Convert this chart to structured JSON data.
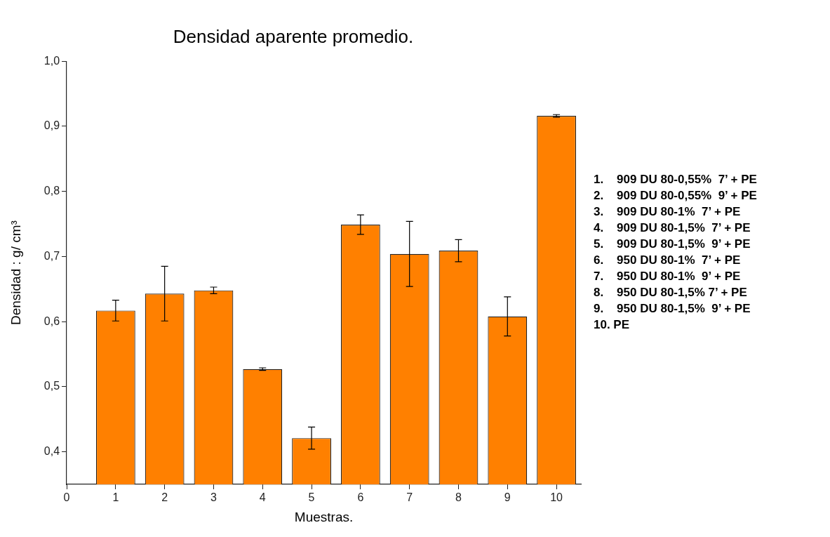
{
  "chart_data": {
    "type": "bar",
    "title": "Densidad aparente promedio.",
    "xlabel": "Muestras.",
    "ylabel": "Densidad : g/ cm³",
    "x": [
      1,
      2,
      3,
      4,
      5,
      6,
      7,
      8,
      9,
      10
    ],
    "values": [
      0.617,
      0.643,
      0.648,
      0.527,
      0.421,
      0.749,
      0.704,
      0.709,
      0.608,
      0.916
    ],
    "errors": [
      0.016,
      0.042,
      0.005,
      0.002,
      0.017,
      0.015,
      0.05,
      0.017,
      0.03,
      0.002
    ],
    "color": "#ff8000",
    "xlim": [
      0,
      10.5
    ],
    "xticks": [
      0,
      1,
      2,
      3,
      4,
      5,
      6,
      7,
      8,
      9,
      10
    ],
    "ylim": [
      0.35,
      1.0
    ],
    "yticks": [
      {
        "value": 0.4,
        "label": "0,4"
      },
      {
        "value": 0.5,
        "label": "0,5"
      },
      {
        "value": 0.6,
        "label": "0,6"
      },
      {
        "value": 0.7,
        "label": "0,7"
      },
      {
        "value": 0.8,
        "label": "0,8"
      },
      {
        "value": 0.9,
        "label": "0,9"
      },
      {
        "value": 1.0,
        "label": "1,0"
      }
    ],
    "grid": false,
    "legend": false,
    "annotations": [
      "1.    909 DU 80-0,55%  7’ + PE",
      "2.    909 DU 80-0,55%  9’ + PE",
      "3.    909 DU 80-1%  7’ + PE",
      "4.    909 DU 80-1,5%  7’ + PE",
      "5.    909 DU 80-1,5%  9’ + PE",
      "6.    950 DU 80-1%  7’ + PE",
      "7.    950 DU 80-1%  9’ + PE",
      "8.    950 DU 80-1,5% 7’ + PE",
      "9.    950 DU 80-1,5%  9’ + PE",
      "10. PE"
    ]
  }
}
